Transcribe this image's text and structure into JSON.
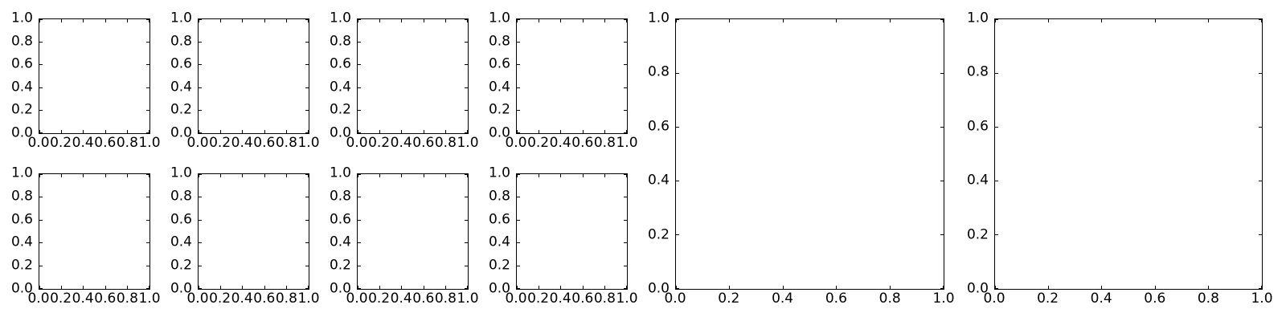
{
  "figure": {
    "background_color": "#ffffff",
    "frame_color": "#000000",
    "tick_color": "#000000",
    "label_color": "#000000"
  },
  "chart_data": {
    "type": "line",
    "title": "",
    "description": "Grid of ten empty matplotlib-style axes: eight small subplots arranged 2 rows x 4 columns on the left, and two large subplots (each spanning both rows) on the right. No data series are plotted in any axes.",
    "grid": {
      "small_rows": 2,
      "small_cols": 4,
      "large_panels": 2
    },
    "shared_axes": {
      "xlim": [
        0.0,
        1.0
      ],
      "ylim": [
        0.0,
        1.0
      ],
      "xticks": [
        0.0,
        0.2,
        0.4,
        0.6,
        0.8,
        1.0
      ],
      "yticks": [
        0.0,
        0.2,
        0.4,
        0.6,
        0.8,
        1.0
      ],
      "xtick_labels": [
        "0.0",
        "0.2",
        "0.4",
        "0.6",
        "0.8",
        "1.0"
      ],
      "ytick_labels": [
        "1.0",
        "0.8",
        "0.6",
        "0.4",
        "0.2",
        "0.0"
      ],
      "grid_lines": false,
      "legend": false,
      "xlabel": "",
      "ylabel": "",
      "tick_direction": "in",
      "ticks_on_all_sides": true
    },
    "subplots": [
      {
        "name": "small-row1-col1",
        "series": []
      },
      {
        "name": "small-row1-col2",
        "series": []
      },
      {
        "name": "small-row1-col3",
        "series": []
      },
      {
        "name": "small-row1-col4",
        "series": []
      },
      {
        "name": "large-panel-1",
        "series": []
      },
      {
        "name": "large-panel-2",
        "series": []
      },
      {
        "name": "small-row2-col1",
        "series": []
      },
      {
        "name": "small-row2-col2",
        "series": []
      },
      {
        "name": "small-row2-col3",
        "series": []
      },
      {
        "name": "small-row2-col4",
        "series": []
      }
    ]
  }
}
